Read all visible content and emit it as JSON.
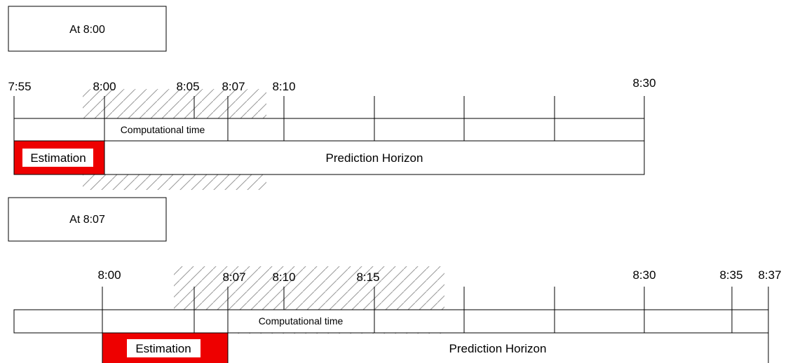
{
  "panels": [
    {
      "title": "At 8:00",
      "time_labels": [
        "7:55",
        "8:00",
        "8:05",
        "8:07",
        "8:10",
        "8:30"
      ],
      "computational_time_label": "Computational time",
      "estimation_label": "Estimation",
      "prediction_label": "Prediction Horizon"
    },
    {
      "title": "At 8:07",
      "time_labels": [
        "8:00",
        "8:07",
        "8:10",
        "8:15",
        "8:30",
        "8:35",
        "8:37"
      ],
      "computational_time_label": "Computational time",
      "estimation_label": "Estimation",
      "prediction_label": "Prediction Horizon"
    }
  ],
  "colors": {
    "estimation_fill": "#ee0000",
    "line": "#000000",
    "hatch": "#999999"
  }
}
